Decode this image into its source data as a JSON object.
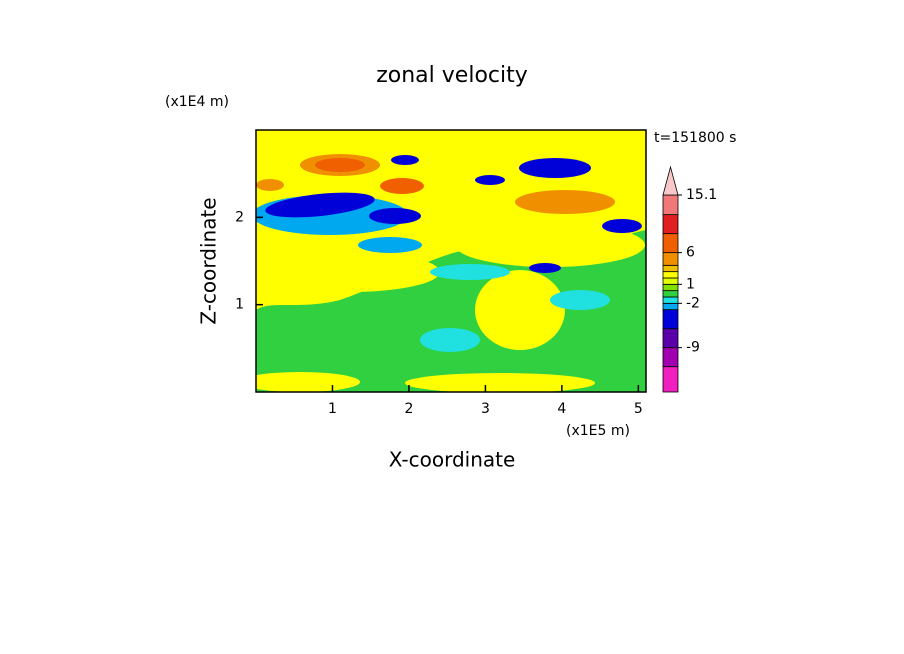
{
  "chart_data": {
    "type": "contour",
    "title": "zonal velocity",
    "x_label": "X-coordinate",
    "y_label": "Z-coordinate",
    "x_unit": "(x1E5 m)",
    "y_unit": "(x1E4 m)",
    "annotation": "t=151800 s",
    "xlim": [
      0,
      5.1
    ],
    "xticks": [
      1,
      2,
      3,
      4,
      5
    ],
    "ylim": [
      0,
      3
    ],
    "yticks": [
      1,
      2
    ],
    "colorbar": {
      "levels": [
        -16,
        -12,
        -9,
        -6,
        -3,
        -2,
        -1,
        0,
        1,
        2,
        3,
        4,
        6,
        9,
        12,
        15.1
      ],
      "colors": [
        "#f020c0",
        "#a000b0",
        "#5a00a8",
        "#0000d8",
        "#00a8f0",
        "#20e0e0",
        "#30d040",
        "#80e000",
        "#e0ff00",
        "#ffff00",
        "#f0c000",
        "#f09000",
        "#f06000",
        "#e02020",
        "#f07878"
      ],
      "over_color": "#f8c8c8",
      "ticks": [
        15.1,
        6,
        1,
        -2,
        -9
      ]
    }
  }
}
